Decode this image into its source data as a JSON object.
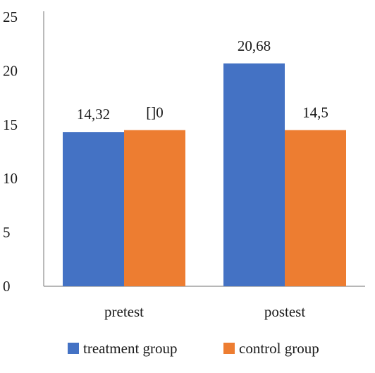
{
  "chart_data": {
    "type": "bar",
    "categories": [
      "pretest",
      "postest"
    ],
    "series": [
      {
        "name": "treatment group",
        "color": "#4472C4",
        "values": [
          14.32,
          20.68
        ],
        "labels": [
          "14,32",
          "20,68"
        ]
      },
      {
        "name": "control group",
        "color": "#ED7D31",
        "values": [
          14.5,
          14.5
        ],
        "labels": [
          "[]0",
          "14,5"
        ]
      }
    ],
    "ylim": [
      0,
      25
    ],
    "yticks": [
      0,
      5,
      10,
      15,
      20,
      25
    ],
    "ytick_labels": [
      "0",
      "5",
      "10",
      "15",
      "20",
      "25"
    ],
    "grid": false,
    "legend": "bottom",
    "title": "",
    "xlabel": "",
    "ylabel": ""
  }
}
